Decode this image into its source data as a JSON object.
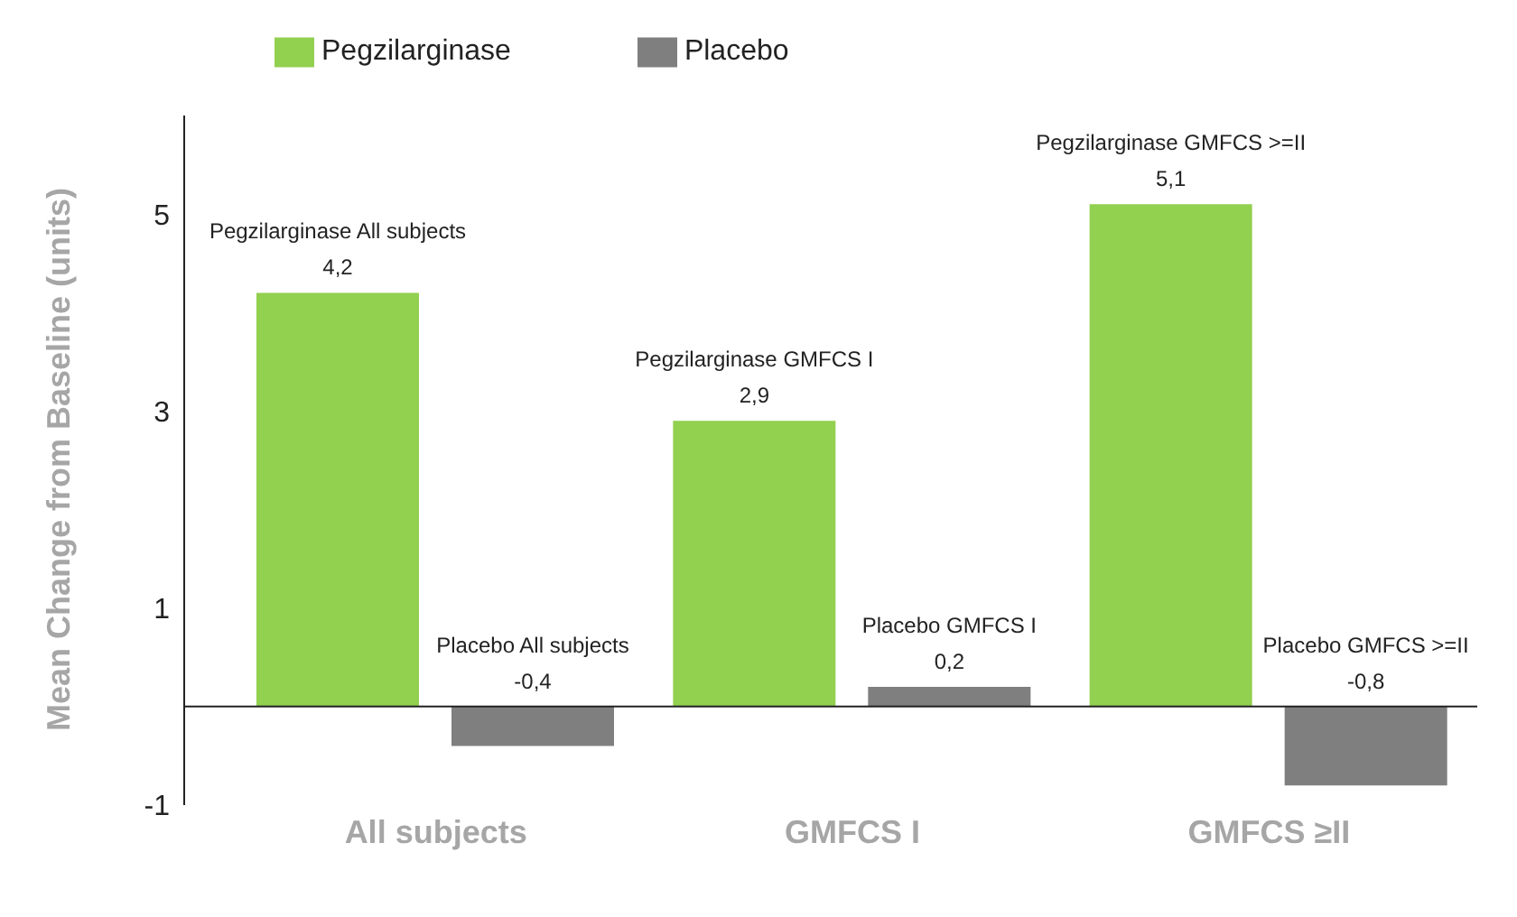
{
  "chart_data": {
    "type": "bar",
    "ylabel": "Mean Change from Baseline (units)",
    "categories": [
      "All subjects",
      "GMFCS I",
      "GMFCS ≥II"
    ],
    "series": [
      {
        "name": "Pegzilarginase",
        "color": "#92d050",
        "values": [
          4.2,
          2.9,
          5.1
        ],
        "value_labels": [
          "4,2",
          "2,9",
          "5,1"
        ]
      },
      {
        "name": "Placebo",
        "color": "#7f7f7f",
        "values": [
          -0.4,
          0.2,
          -0.8
        ],
        "value_labels": [
          "-0,4",
          "0,2",
          "-0,8"
        ]
      }
    ],
    "annotations": [
      "Pegzilarginase All subjects",
      "Pegzilarginase GMFCS I",
      "Pegzilarginase GMFCS >=II",
      "Placebo All subjects",
      "Placebo GMFCS I",
      "Placebo GMFCS >=II"
    ],
    "ylim": [
      -1,
      6
    ],
    "yticks": [
      -1,
      1,
      3,
      5
    ],
    "grid": false,
    "legend": "top"
  }
}
